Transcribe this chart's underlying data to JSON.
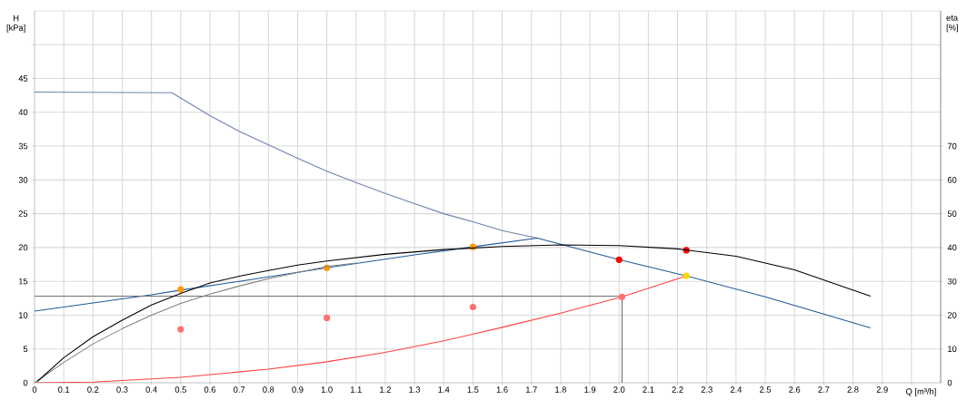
{
  "chart_data": {
    "type": "line",
    "xlabel": "Q [m³/h]",
    "ylabel": "H [kPa]",
    "y2label": "eta [%]",
    "xlim": [
      0,
      3.1
    ],
    "xticks": [
      0,
      0.1,
      0.2,
      0.3,
      0.4,
      0.5,
      0.6,
      0.7,
      0.8,
      0.9,
      {
        "value": 1,
        "label": "1.0"
      },
      1.1,
      1.2,
      1.3,
      1.4,
      1.5,
      1.6,
      1.7,
      1.8,
      1.9,
      {
        "value": 2,
        "label": "2.0"
      },
      2.1,
      2.2,
      2.3,
      2.4,
      2.5,
      2.6,
      2.7,
      2.8,
      2.9,
      {
        "value": 3,
        "label": null
      }
    ],
    "ylim": [
      0,
      55
    ],
    "yticks": [
      0,
      5,
      10,
      15,
      20,
      25,
      30,
      35,
      40,
      45,
      {
        "value": 50,
        "label": null
      }
    ],
    "y2lim": [
      0,
      110
    ],
    "y2ticks": [
      0,
      10,
      20,
      30,
      40,
      50,
      60,
      70
    ],
    "grid": true,
    "series": [
      {
        "color": "#6e82ad",
        "x": [
          0,
          0.47,
          0.6,
          0.7,
          0.8,
          0.9,
          1.0,
          1.1,
          1.2,
          1.3,
          1.4,
          1.5,
          1.6,
          1.72
        ],
        "values": [
          43,
          42.9,
          39.5,
          37.2,
          35.2,
          33.2,
          31.3,
          29.6,
          28.0,
          26.5,
          25.0,
          23.8,
          22.5,
          21.4
        ]
      },
      {
        "color": "#808080",
        "axis": "y2",
        "x": [
          0,
          0.1,
          0.2,
          0.3,
          0.4,
          0.5,
          0.6,
          0.7,
          0.8,
          0.9,
          1.0,
          1.1
        ],
        "values": [
          0,
          6,
          11.5,
          16,
          20,
          23.5,
          26.2,
          28.6,
          30.8,
          32.6,
          34.4,
          35.4
        ]
      },
      {
        "color": "#000000",
        "axis": "y2",
        "x": [
          0.01,
          0.1,
          0.2,
          0.3,
          0.4,
          0.5,
          0.6,
          0.7,
          0.8,
          0.9,
          1.0,
          1.2,
          1.4,
          1.6,
          1.8,
          2.0,
          2.2,
          2.4,
          2.6,
          2.86
        ],
        "values": [
          0.4,
          7.4,
          13.6,
          18.5,
          23,
          26.4,
          29.5,
          31.5,
          33.2,
          34.8,
          36,
          38,
          39.4,
          40.3,
          40.8,
          40.6,
          39.6,
          37.4,
          33.4,
          25.6
        ]
      },
      {
        "color": "#1f5a96",
        "x": [
          0,
          0.2,
          0.4,
          0.5,
          0.7,
          1.0,
          1.3,
          1.5,
          1.72,
          2.0,
          2.23,
          2.5,
          2.86
        ],
        "values": [
          10.6,
          11.8,
          13.0,
          13.7,
          15.0,
          17.0,
          18.9,
          20.1,
          21.4,
          18.2,
          15.8,
          12.7,
          8.1
        ]
      },
      {
        "color": "#ff4040",
        "x": [
          0,
          0.2,
          0.5,
          0.8,
          1.0,
          1.2,
          1.4,
          1.6,
          1.8,
          2.01,
          2.23
        ],
        "values": [
          0,
          0.1,
          0.8,
          2.0,
          3.1,
          4.5,
          6.2,
          8.2,
          10.3,
          12.7,
          15.8
        ]
      },
      {
        "color": "#707070",
        "x": [
          0,
          2.01,
          2.01
        ],
        "values": [
          12.8,
          12.8,
          0
        ]
      },
      {
        "type": "scatter",
        "color": "#ff9900",
        "x": [
          0.5,
          1.0,
          1.5
        ],
        "values": [
          13.8,
          17.0,
          20.1
        ]
      },
      {
        "type": "scatter",
        "color": "#ffd700",
        "x": [
          2.23
        ],
        "values": [
          15.8
        ]
      },
      {
        "type": "scatter",
        "color": "#ff0000",
        "x": [
          2.0,
          2.23
        ],
        "values": [
          18.2,
          19.6
        ]
      },
      {
        "type": "scatter",
        "color": "#ff7070",
        "x": [
          0.5,
          1.0,
          1.5,
          2.01
        ],
        "values": [
          7.9,
          9.6,
          11.2,
          12.7
        ]
      }
    ]
  }
}
